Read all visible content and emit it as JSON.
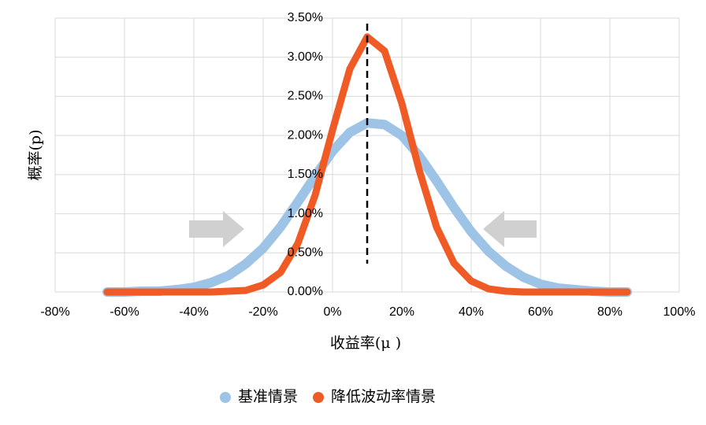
{
  "chart_data": {
    "type": "line",
    "x_label": "收益率(μ )",
    "y_label": "概率(p)",
    "x": [
      -65,
      -60,
      -55,
      -50,
      -45,
      -40,
      -35,
      -30,
      -25,
      -20,
      -15,
      -10,
      -5,
      0,
      5,
      10,
      15,
      20,
      25,
      30,
      35,
      40,
      45,
      50,
      55,
      60,
      65,
      70,
      75,
      80,
      85
    ],
    "series": [
      {
        "name": "基准情景",
        "color": "#9dc3e6",
        "values": [
          0,
          0,
          0.01,
          0.01,
          0.03,
          0.06,
          0.12,
          0.21,
          0.36,
          0.56,
          0.83,
          1.15,
          1.48,
          1.8,
          2.04,
          2.16,
          2.14,
          2.0,
          1.74,
          1.42,
          1.08,
          0.77,
          0.52,
          0.33,
          0.19,
          0.1,
          0.05,
          0.03,
          0.01,
          0,
          0
        ]
      },
      {
        "name": "降低波动率情景",
        "color": "#f05a24",
        "values": [
          0,
          0,
          0,
          0,
          0,
          0,
          0,
          0.01,
          0.02,
          0.09,
          0.25,
          0.62,
          1.24,
          2.07,
          2.85,
          3.26,
          3.08,
          2.41,
          1.56,
          0.83,
          0.37,
          0.14,
          0.04,
          0.01,
          0,
          0,
          0,
          0,
          0,
          0,
          0
        ]
      }
    ],
    "xlim": [
      -80,
      100
    ],
    "xticks": [
      {
        "value": -80,
        "label": "-80%"
      },
      {
        "value": -60,
        "label": "-60%"
      },
      {
        "value": -40,
        "label": "-40%"
      },
      {
        "value": -20,
        "label": "-20%"
      },
      {
        "value": 0,
        "label": "0%"
      },
      {
        "value": 20,
        "label": "20%"
      },
      {
        "value": 40,
        "label": "40%"
      },
      {
        "value": 60,
        "label": "60%"
      },
      {
        "value": 80,
        "label": "80%"
      },
      {
        "value": 100,
        "label": "100%"
      }
    ],
    "ylim": [
      0,
      3.5
    ],
    "yticks": [
      {
        "value": 0,
        "label": "0.00%"
      },
      {
        "value": 0.5,
        "label": "0.50%"
      },
      {
        "value": 1,
        "label": "1.00%"
      },
      {
        "value": 1.5,
        "label": "1.50%"
      },
      {
        "value": 2,
        "label": "2.00%"
      },
      {
        "value": 2.5,
        "label": "2.50%"
      },
      {
        "value": 3,
        "label": "3.00%"
      },
      {
        "value": 3.5,
        "label": "3.50%"
      }
    ],
    "grid": true,
    "reference_x": 10,
    "legend": "bottom"
  }
}
